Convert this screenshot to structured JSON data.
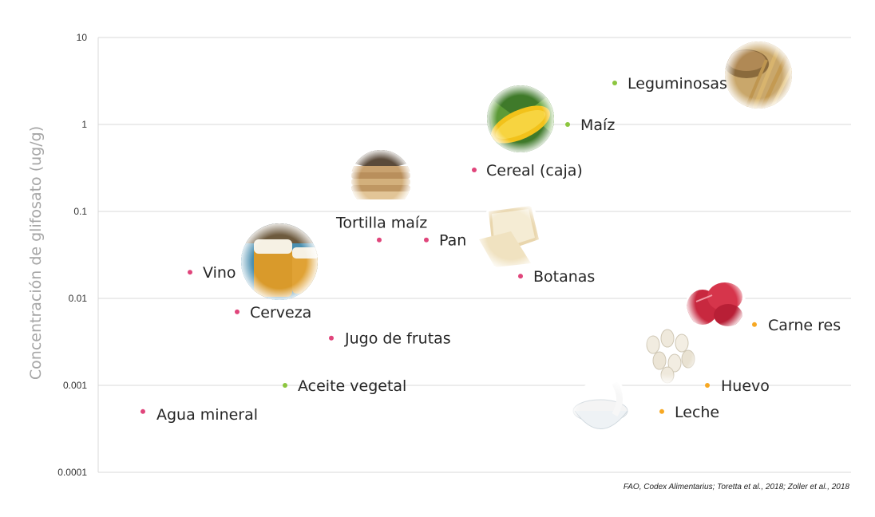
{
  "chart_data": {
    "type": "scatter",
    "title": "",
    "ylabel": "Concentración de glifosato (ug/g)",
    "xlabel": "",
    "yscale": "log",
    "ylim": [
      0.0001,
      10
    ],
    "yticks": [
      "10",
      "1",
      "0.1",
      "0.01",
      "0.001",
      "0.0001"
    ],
    "grid": true,
    "colors": {
      "pink": "#e0457b",
      "green": "#8cc63f",
      "orange": "#f7a823"
    },
    "points": [
      {
        "label": "Agua mineral",
        "y": 0.0005,
        "color": "pink",
        "photo": "none"
      },
      {
        "label": "Vino",
        "y": 0.02,
        "color": "pink",
        "photo": "none"
      },
      {
        "label": "Cerveza",
        "y": 0.007,
        "color": "pink",
        "photo": "beer-glasses"
      },
      {
        "label": "Aceite vegetal",
        "y": 0.001,
        "color": "green",
        "photo": "none"
      },
      {
        "label": "Jugo de frutas",
        "y": 0.0035,
        "color": "pink",
        "photo": "none"
      },
      {
        "label": "Tortilla maíz",
        "y": 0.047,
        "color": "pink",
        "photo": "tortillas"
      },
      {
        "label": "Pan",
        "y": 0.047,
        "color": "pink",
        "photo": "bread"
      },
      {
        "label": "Cereal (caja)",
        "y": 0.3,
        "color": "pink",
        "photo": "none"
      },
      {
        "label": "Botanas",
        "y": 0.018,
        "color": "pink",
        "photo": "none"
      },
      {
        "label": "Maíz",
        "y": 1.0,
        "color": "green",
        "photo": "corn"
      },
      {
        "label": "Leguminosas",
        "y": 3.0,
        "color": "green",
        "photo": "wheat"
      },
      {
        "label": "Carne res",
        "y": 0.005,
        "color": "orange",
        "photo": "beef"
      },
      {
        "label": "Huevo",
        "y": 0.001,
        "color": "orange",
        "photo": "eggs"
      },
      {
        "label": "Leche",
        "y": 0.0005,
        "color": "orange",
        "photo": "milk"
      }
    ]
  },
  "source": "FAO, Codex Alimentarius;  Toretta et al., 2018; Zoller et al., 2018"
}
